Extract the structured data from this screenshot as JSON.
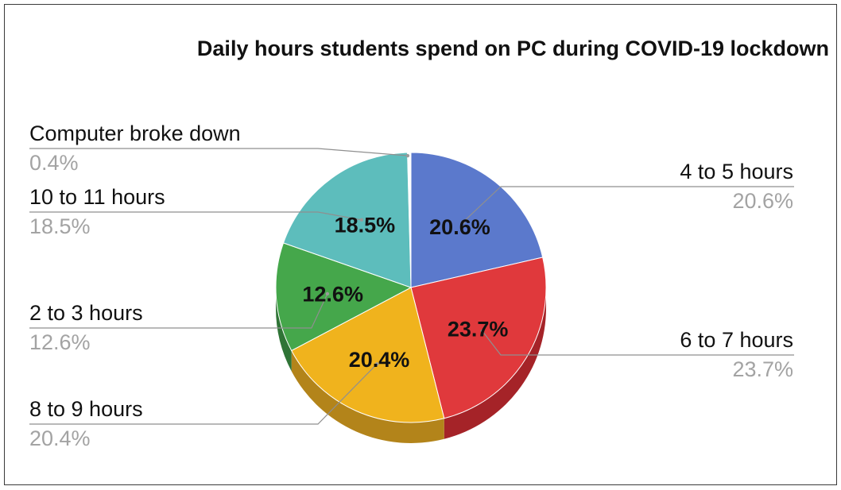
{
  "chart_data": {
    "type": "pie",
    "title": "Daily hours students spend on PC during COVID-19 lockdown",
    "slices": [
      {
        "label": "4 to 5 hours",
        "value": 20.6,
        "display": "20.6%",
        "color": "#5b79cc",
        "side_color": "#3f55a0"
      },
      {
        "label": "6 to 7 hours",
        "value": 23.7,
        "display": "23.7%",
        "color": "#e0393c",
        "side_color": "#a52328"
      },
      {
        "label": "8 to 9 hours",
        "value": 20.4,
        "display": "20.4%",
        "color": "#f0b31d",
        "side_color": "#b3841a"
      },
      {
        "label": "2 to 3 hours",
        "value": 12.6,
        "display": "12.6%",
        "color": "#45a74b",
        "side_color": "#2f7436"
      },
      {
        "label": "10 to 11 hours",
        "value": 18.5,
        "display": "18.5%",
        "color": "#5dbdbc",
        "side_color": "#3f8a89"
      },
      {
        "label": "Computer broke down",
        "value": 0.4,
        "display": "0.4%",
        "color": "#b98fd1",
        "side_color": "#8a6aa0"
      }
    ],
    "minor_slice_colors": [
      "#f2a6a0",
      "#f5c67e",
      "#a5d6a7",
      "#9fc5e8",
      "#d5a6bd",
      "#ffe599",
      "#b4a7d6",
      "#f9cb9c",
      "#cfe2f3",
      "#ead1dc"
    ],
    "legend": "none",
    "labels_position": "outside-with-leaders"
  }
}
